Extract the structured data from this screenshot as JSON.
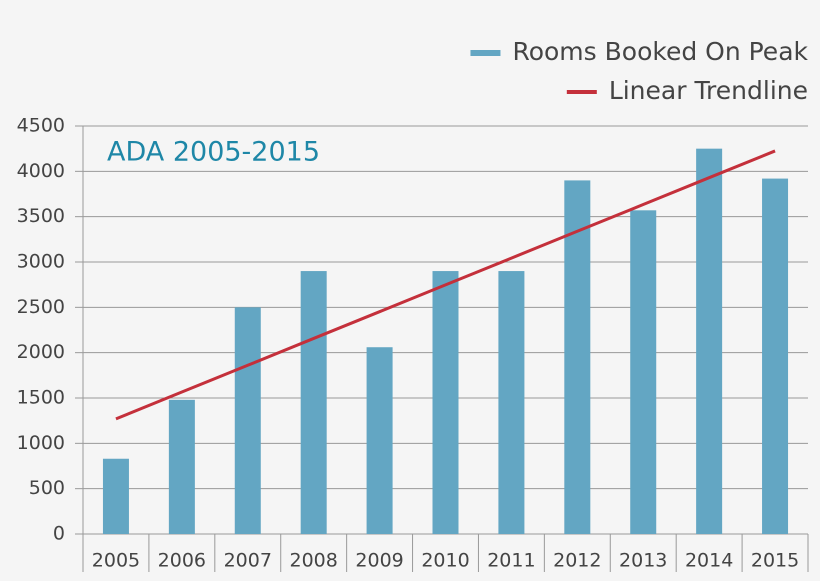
{
  "chart_data": {
    "type": "bar",
    "annotation": "ADA 2005-2015",
    "categories": [
      "2005",
      "2006",
      "2007",
      "2008",
      "2009",
      "2010",
      "2011",
      "2012",
      "2013",
      "2014",
      "2015"
    ],
    "series": [
      {
        "name": "Rooms Booked On Peak",
        "type": "bar",
        "color": "#63a6c3",
        "values": [
          830,
          1480,
          2500,
          2900,
          2060,
          2900,
          2900,
          3900,
          3570,
          4250,
          3920
        ]
      },
      {
        "name": "Linear Trendline",
        "type": "line",
        "color": "#c4303b",
        "values": [
          1270,
          1566,
          1861,
          2157,
          2452,
          2748,
          3043,
          3339,
          3634,
          3930,
          4225
        ]
      }
    ],
    "ylim": [
      0,
      4500
    ],
    "yticks": [
      0,
      500,
      1000,
      1500,
      2000,
      2500,
      3000,
      3500,
      4000,
      4500
    ],
    "grid": true,
    "legend": "top-right"
  }
}
